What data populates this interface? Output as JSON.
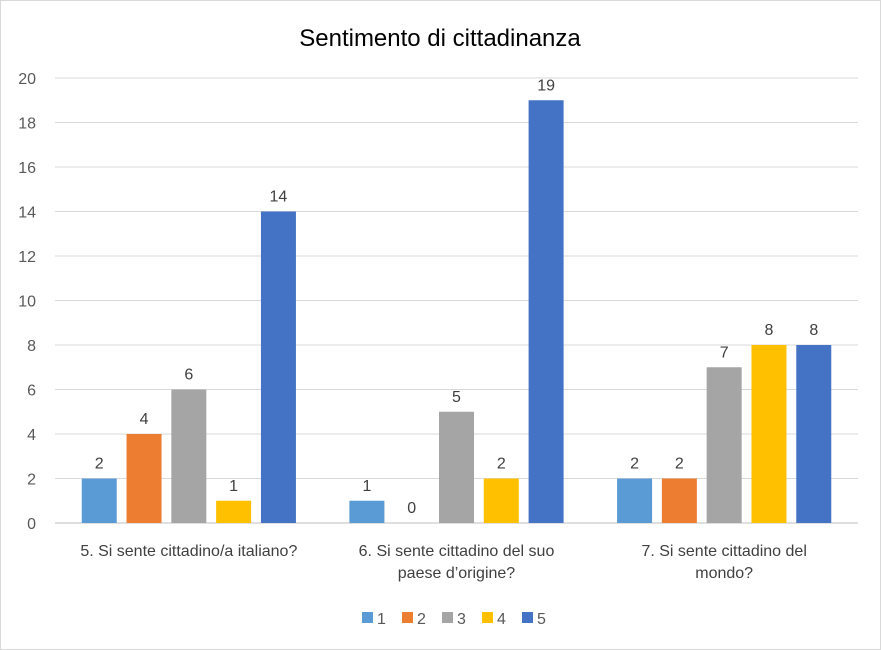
{
  "chart_data": {
    "type": "bar",
    "title": "Sentimento di cittadinanza",
    "xlabel": "",
    "ylabel": "",
    "ylim": [
      0,
      20
    ],
    "yticks": [
      0,
      2,
      4,
      6,
      8,
      10,
      12,
      14,
      16,
      18,
      20
    ],
    "grid": true,
    "legend": "bottom",
    "categories": [
      [
        "5. Si sente cittadino/a italiano?"
      ],
      [
        "6. Si sente cittadino del suo",
        "paese d’origine?"
      ],
      [
        "7. Si sente cittadino del",
        "mondo?"
      ]
    ],
    "series": [
      {
        "name": "1",
        "color": "#5B9BD5",
        "values": [
          2,
          1,
          2
        ]
      },
      {
        "name": "2",
        "color": "#ED7D31",
        "values": [
          4,
          0,
          2
        ]
      },
      {
        "name": "3",
        "color": "#A5A5A5",
        "values": [
          6,
          5,
          7
        ]
      },
      {
        "name": "4",
        "color": "#FFC000",
        "values": [
          1,
          2,
          8
        ]
      },
      {
        "name": "5",
        "color": "#4472C4",
        "values": [
          14,
          19,
          8
        ]
      }
    ]
  }
}
